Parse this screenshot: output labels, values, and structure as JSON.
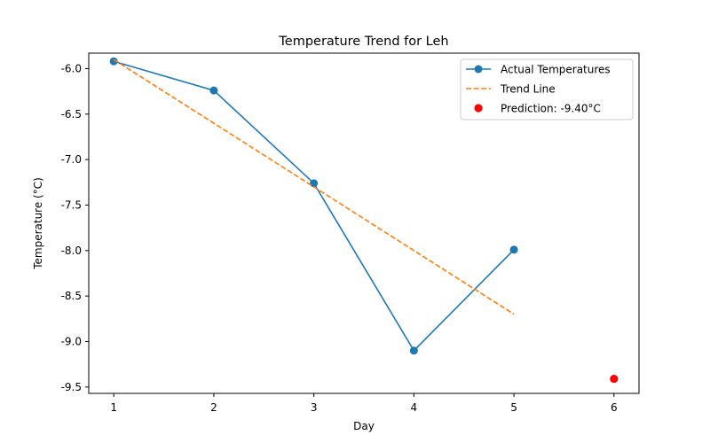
{
  "chart_data": {
    "type": "line",
    "title": "Temperature Trend for Leh",
    "xlabel": "Day",
    "ylabel": "Temperature (°C)",
    "xlim": [
      0.75,
      6.25
    ],
    "ylim": [
      -9.57,
      -5.83
    ],
    "x_ticks": [
      1,
      2,
      3,
      4,
      5,
      6
    ],
    "y_ticks": [
      -6.0,
      -6.5,
      -7.0,
      -7.5,
      -8.0,
      -8.5,
      -9.0,
      -9.5
    ],
    "grid": false,
    "legend_position": "top-right",
    "series": [
      {
        "name": "Actual Temperatures",
        "kind": "line-marker",
        "color": "#1f77b4",
        "x": [
          1,
          2,
          3,
          4,
          5
        ],
        "y": [
          -5.92,
          -6.24,
          -7.26,
          -9.1,
          -7.99
        ]
      },
      {
        "name": "Trend Line",
        "kind": "dashed-line",
        "color": "#ff7f0e",
        "x": [
          1,
          5
        ],
        "y": [
          -5.9,
          -8.7
        ]
      },
      {
        "name": "Prediction: -9.40°C",
        "kind": "scatter",
        "color": "#ff0000",
        "x": [
          6
        ],
        "y": [
          -9.41
        ]
      }
    ]
  }
}
